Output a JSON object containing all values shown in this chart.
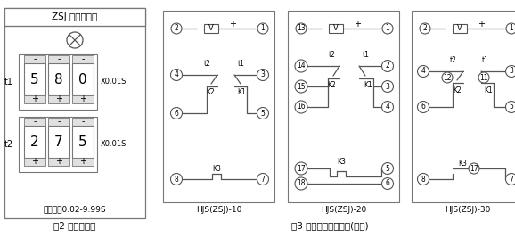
{
  "title": "ZSJ 时间继电器",
  "panel_label": "图2 面板示意图",
  "wiring_label": "图3 继电器端子接线图(背视)",
  "range_text": "整定范围0.02-9.99S",
  "t1_vals": [
    "5",
    "8",
    "0"
  ],
  "t2_vals": [
    "2",
    "7",
    "5"
  ],
  "mult": "X0.01S",
  "diagrams": [
    "HJS(ZSJ)-10",
    "HJS(ZSJ)-20",
    "HJS(ZSJ)-30"
  ],
  "bg": "#ffffff",
  "fg": "#000000",
  "line_color": "#555555"
}
